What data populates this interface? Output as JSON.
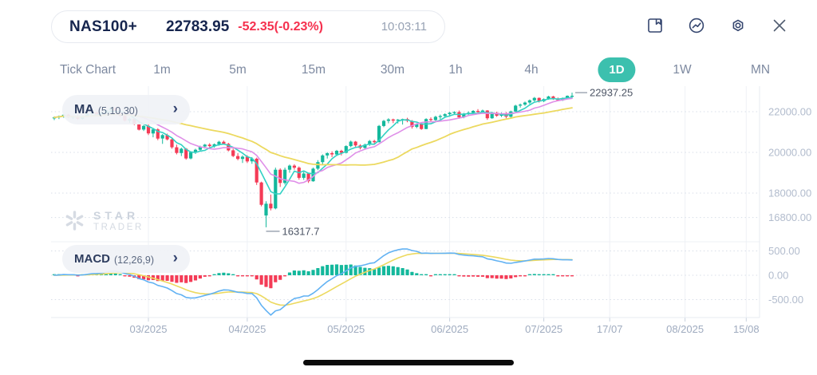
{
  "header": {
    "symbol": "NAS100+",
    "price": "22783.95",
    "change": "-52.35(-0.23%)",
    "time": "10:03:11",
    "icons": [
      "save-bookmark-icon",
      "indicator-chart-icon",
      "settings-icon",
      "close-icon"
    ]
  },
  "timeframes": {
    "items": [
      {
        "label": "Tick Chart",
        "active": false
      },
      {
        "label": "1m",
        "active": false
      },
      {
        "label": "5m",
        "active": false
      },
      {
        "label": "15m",
        "active": false
      },
      {
        "label": "30m",
        "active": false
      },
      {
        "label": "1h",
        "active": false
      },
      {
        "label": "4h",
        "active": false
      },
      {
        "label": "1D",
        "active": true
      },
      {
        "label": "1W",
        "active": false
      },
      {
        "label": "MN",
        "active": false
      }
    ]
  },
  "indicators": {
    "ma": {
      "label": "MA",
      "params": "(5,10,30)"
    },
    "macd": {
      "label": "MACD",
      "params": "(12,26,9)"
    }
  },
  "watermark": {
    "line1": "STAR",
    "line2": "TRADER"
  },
  "chart_data": {
    "type": "candlestick+macd",
    "symbol": "NAS100+",
    "timeframe": "1D",
    "y_ticks_price": [
      {
        "label": "22000.00",
        "value": 22000
      },
      {
        "label": "20000.00",
        "value": 20000
      },
      {
        "label": "18000.00",
        "value": 18000
      },
      {
        "label": "16800.00",
        "value": 16800
      }
    ],
    "y_ticks_macd": [
      {
        "label": "500.00",
        "value": 500
      },
      {
        "label": "0.00",
        "value": 0
      },
      {
        "label": "-500.00",
        "value": -500
      }
    ],
    "x_ticks": [
      {
        "label": "03/2025",
        "i": 20
      },
      {
        "label": "04/2025",
        "i": 41
      },
      {
        "label": "05/2025",
        "i": 62
      },
      {
        "label": "06/2025",
        "i": 84
      },
      {
        "label": "07/2025",
        "i": 104
      },
      {
        "label": "17/07",
        "i": 118
      },
      {
        "label": "08/2025",
        "i": 134
      },
      {
        "label": "15/08",
        "i": 147
      }
    ],
    "annotations": {
      "high": {
        "label": "22937.25",
        "i": 110
      },
      "low": {
        "label": "16317.7",
        "i": 45
      }
    },
    "ma_periods": [
      5,
      10,
      30
    ],
    "macd_params": [
      12,
      26,
      9
    ],
    "colors": {
      "up": "#14b89c",
      "down": "#f43b56",
      "ma5": "#32d1c4",
      "ma10": "#df8fe8",
      "ma30": "#ecd95f",
      "macd": "#62b2f3",
      "signal": "#ecd95f",
      "accent": "#3cc0ae",
      "navy": "#16254e",
      "loss": "#f5304e"
    },
    "candles": [
      [
        21680,
        21770,
        21590,
        21720
      ],
      [
        21720,
        21810,
        21640,
        21780
      ],
      [
        21780,
        21880,
        21700,
        21850
      ],
      [
        21850,
        21890,
        21690,
        21720
      ],
      [
        21720,
        21800,
        21640,
        21760
      ],
      [
        21760,
        21830,
        21600,
        21650
      ],
      [
        21650,
        21800,
        21620,
        21780
      ],
      [
        21780,
        21920,
        21740,
        21900
      ],
      [
        21900,
        22000,
        21820,
        21960
      ],
      [
        21960,
        22010,
        21830,
        21870
      ],
      [
        21870,
        21990,
        21810,
        21950
      ],
      [
        21950,
        22110,
        21900,
        22080
      ],
      [
        22080,
        22230,
        22020,
        22180
      ],
      [
        22180,
        22220,
        21980,
        22020
      ],
      [
        22020,
        22100,
        21750,
        21800
      ],
      [
        21800,
        21860,
        21520,
        21560
      ],
      [
        21560,
        21700,
        21450,
        21650
      ],
      [
        21650,
        21680,
        21340,
        21390
      ],
      [
        21390,
        21450,
        21080,
        21120
      ],
      [
        21120,
        21350,
        21050,
        21300
      ],
      [
        21300,
        21420,
        20850,
        20930
      ],
      [
        20930,
        21180,
        20740,
        21130
      ],
      [
        21130,
        21190,
        20600,
        20680
      ],
      [
        20680,
        20900,
        20420,
        20850
      ],
      [
        20850,
        20920,
        20590,
        20640
      ],
      [
        20640,
        20700,
        20180,
        20250
      ],
      [
        20250,
        20380,
        19900,
        19970
      ],
      [
        19970,
        20230,
        19820,
        20180
      ],
      [
        20180,
        20210,
        19640,
        19700
      ],
      [
        19700,
        20050,
        19660,
        20010
      ],
      [
        20010,
        20180,
        19920,
        20130
      ],
      [
        20130,
        20330,
        20060,
        20290
      ],
      [
        20290,
        20420,
        20190,
        20380
      ],
      [
        20380,
        20450,
        20260,
        20310
      ],
      [
        20310,
        20440,
        20230,
        20400
      ],
      [
        20400,
        20570,
        20330,
        20520
      ],
      [
        20520,
        20580,
        20380,
        20420
      ],
      [
        20420,
        20470,
        20050,
        20100
      ],
      [
        20100,
        20190,
        19770,
        19820
      ],
      [
        19820,
        19960,
        19610,
        19680
      ],
      [
        19680,
        19850,
        19480,
        19790
      ],
      [
        19790,
        19860,
        19480,
        19560
      ],
      [
        19560,
        19770,
        19440,
        19690
      ],
      [
        19690,
        19740,
        18400,
        18520
      ],
      [
        18520,
        18560,
        17350,
        17420
      ],
      [
        16900,
        17600,
        16317.7,
        17480
      ],
      [
        17480,
        17930,
        17150,
        17250
      ],
      [
        17250,
        19250,
        17200,
        19150
      ],
      [
        19150,
        19220,
        18300,
        18500
      ],
      [
        18500,
        19250,
        18420,
        19150
      ],
      [
        19150,
        19400,
        19000,
        19350
      ],
      [
        19350,
        19420,
        19150,
        19250
      ],
      [
        19250,
        19310,
        18660,
        18750
      ],
      [
        18750,
        19050,
        18650,
        18960
      ],
      [
        18960,
        19000,
        18500,
        18580
      ],
      [
        18580,
        19250,
        18560,
        19200
      ],
      [
        19200,
        19620,
        19130,
        19520
      ],
      [
        19520,
        19900,
        19400,
        19850
      ],
      [
        19850,
        20010,
        19700,
        19960
      ],
      [
        19960,
        20050,
        19770,
        19900
      ],
      [
        19900,
        20120,
        19820,
        20080
      ],
      [
        20080,
        20130,
        19850,
        19980
      ],
      [
        19980,
        20350,
        19950,
        20310
      ],
      [
        20310,
        20580,
        20250,
        20530
      ],
      [
        20530,
        20560,
        20280,
        20340
      ],
      [
        20340,
        20400,
        20150,
        20220
      ],
      [
        20220,
        20430,
        20160,
        20380
      ],
      [
        20380,
        20610,
        20320,
        20560
      ],
      [
        20560,
        20620,
        20400,
        20500
      ],
      [
        20500,
        21350,
        20490,
        21300
      ],
      [
        21300,
        21600,
        21240,
        21550
      ],
      [
        21550,
        21680,
        21430,
        21620
      ],
      [
        21620,
        21660,
        21440,
        21560
      ],
      [
        21560,
        21640,
        21420,
        21610
      ],
      [
        21610,
        21660,
        21370,
        21640
      ],
      [
        21640,
        21700,
        21480,
        21550
      ],
      [
        21550,
        21590,
        21170,
        21250
      ],
      [
        21250,
        21440,
        21190,
        21400
      ],
      [
        21400,
        21430,
        21110,
        21150
      ],
      [
        21150,
        21680,
        21140,
        21640
      ],
      [
        21640,
        21720,
        21500,
        21590
      ],
      [
        21590,
        21800,
        21550,
        21750
      ],
      [
        21750,
        21860,
        21630,
        21790
      ],
      [
        21790,
        21920,
        21700,
        21880
      ],
      [
        21880,
        21990,
        21760,
        21950
      ],
      [
        21950,
        22020,
        21860,
        21980
      ],
      [
        21980,
        22060,
        21660,
        21720
      ],
      [
        21720,
        21940,
        21680,
        21900
      ],
      [
        21900,
        22020,
        21840,
        21950
      ],
      [
        21950,
        22080,
        21880,
        22040
      ],
      [
        22040,
        22130,
        21930,
        22000
      ],
      [
        22000,
        22100,
        21900,
        22060
      ],
      [
        22060,
        22080,
        21600,
        21680
      ],
      [
        21680,
        22000,
        21650,
        21950
      ],
      [
        21950,
        22000,
        21750,
        21800
      ],
      [
        21800,
        21960,
        21740,
        21900
      ],
      [
        21900,
        21980,
        21680,
        21750
      ],
      [
        21750,
        22050,
        21700,
        22010
      ],
      [
        22010,
        22340,
        21990,
        22300
      ],
      [
        22300,
        22400,
        22200,
        22350
      ],
      [
        22350,
        22500,
        22290,
        22450
      ],
      [
        22450,
        22600,
        22380,
        22560
      ],
      [
        22560,
        22720,
        22500,
        22680
      ],
      [
        22680,
        22700,
        22450,
        22520
      ],
      [
        22520,
        22650,
        22470,
        22620
      ],
      [
        22620,
        22780,
        22590,
        22750
      ],
      [
        22750,
        22780,
        22580,
        22640
      ],
      [
        22640,
        22700,
        22520,
        22560
      ],
      [
        22560,
        22700,
        22530,
        22670
      ],
      [
        22670,
        22800,
        22620,
        22780
      ],
      [
        22780,
        22937.25,
        22680,
        22783.95
      ]
    ]
  }
}
